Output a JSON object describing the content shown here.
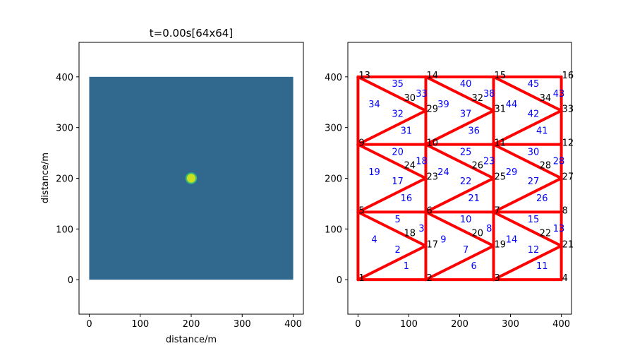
{
  "chart_data": [
    {
      "type": "heatmap",
      "title": "t=0.00s[64x64]",
      "xlabel": "distance/m",
      "ylabel": "distance/m",
      "xlim": [
        -20,
        420
      ],
      "ylim": [
        -68,
        468
      ],
      "xticks": [
        0,
        100,
        200,
        300,
        400
      ],
      "yticks": [
        0,
        100,
        200,
        300,
        400
      ],
      "domain": [
        0,
        400,
        0,
        400
      ],
      "grid": "64x64",
      "background_value_color": "#31688e",
      "source": {
        "x": 200,
        "y": 200,
        "radius": 10,
        "color": "#c8e020"
      }
    },
    {
      "type": "mesh",
      "title": "",
      "xlim": [
        -20,
        420
      ],
      "ylim": [
        -68,
        468
      ],
      "xticks": [
        0,
        100,
        200,
        300,
        400
      ],
      "yticks": [
        0,
        100,
        200,
        300,
        400
      ],
      "edge_color": "#ff0000",
      "node_label_color": "#000000",
      "element_label_color": "#0000ff",
      "nodes": [
        {
          "id": "1",
          "x": 0,
          "y": 0
        },
        {
          "id": "2",
          "x": 133.33,
          "y": 0
        },
        {
          "id": "3",
          "x": 266.67,
          "y": 0
        },
        {
          "id": "4",
          "x": 400,
          "y": 0
        },
        {
          "id": "5",
          "x": 0,
          "y": 133.33
        },
        {
          "id": "6",
          "x": 133.33,
          "y": 133.33
        },
        {
          "id": "7",
          "x": 266.67,
          "y": 133.33
        },
        {
          "id": "8",
          "x": 400,
          "y": 133.33
        },
        {
          "id": "9",
          "x": 0,
          "y": 266.67
        },
        {
          "id": "10",
          "x": 133.33,
          "y": 266.67
        },
        {
          "id": "11",
          "x": 266.67,
          "y": 266.67
        },
        {
          "id": "12",
          "x": 400,
          "y": 266.67
        },
        {
          "id": "13",
          "x": 0,
          "y": 400
        },
        {
          "id": "14",
          "x": 133.33,
          "y": 400
        },
        {
          "id": "15",
          "x": 266.67,
          "y": 400
        },
        {
          "id": "16",
          "x": 400,
          "y": 400
        },
        {
          "id": "17",
          "x": 133.33,
          "y": 66.67
        },
        {
          "id": "18",
          "x": 88.89,
          "y": 88.89
        },
        {
          "id": "19",
          "x": 266.67,
          "y": 66.67
        },
        {
          "id": "20",
          "x": 222.22,
          "y": 88.89
        },
        {
          "id": "21",
          "x": 400,
          "y": 66.67
        },
        {
          "id": "22",
          "x": 355.56,
          "y": 88.89
        },
        {
          "id": "23",
          "x": 133.33,
          "y": 200
        },
        {
          "id": "24",
          "x": 88.89,
          "y": 222.22
        },
        {
          "id": "25",
          "x": 266.67,
          "y": 200
        },
        {
          "id": "26",
          "x": 222.22,
          "y": 222.22
        },
        {
          "id": "27",
          "x": 400,
          "y": 200
        },
        {
          "id": "28",
          "x": 355.56,
          "y": 222.22
        },
        {
          "id": "29",
          "x": 133.33,
          "y": 333.33
        },
        {
          "id": "30",
          "x": 88.89,
          "y": 355.56
        },
        {
          "id": "31",
          "x": 266.67,
          "y": 333.33
        },
        {
          "id": "32",
          "x": 222.22,
          "y": 355.56
        },
        {
          "id": "33",
          "x": 400,
          "y": 333.33
        },
        {
          "id": "34",
          "x": 355.56,
          "y": 355.56
        }
      ],
      "elements": [
        {
          "id": "1",
          "x": 95,
          "y": 28
        },
        {
          "id": "2",
          "x": 78,
          "y": 60
        },
        {
          "id": "3",
          "x": 125,
          "y": 102
        },
        {
          "id": "4",
          "x": 32,
          "y": 80
        },
        {
          "id": "5",
          "x": 78,
          "y": 120
        },
        {
          "id": "6",
          "x": 228,
          "y": 28
        },
        {
          "id": "7",
          "x": 212,
          "y": 60
        },
        {
          "id": "8",
          "x": 258,
          "y": 102
        },
        {
          "id": "9",
          "x": 168,
          "y": 80
        },
        {
          "id": "10",
          "x": 212,
          "y": 120
        },
        {
          "id": "11",
          "x": 362,
          "y": 28
        },
        {
          "id": "12",
          "x": 345,
          "y": 60
        },
        {
          "id": "13",
          "x": 395,
          "y": 102
        },
        {
          "id": "14",
          "x": 302,
          "y": 80
        },
        {
          "id": "15",
          "x": 345,
          "y": 120
        },
        {
          "id": "16",
          "x": 95,
          "y": 162
        },
        {
          "id": "17",
          "x": 78,
          "y": 195
        },
        {
          "id": "18",
          "x": 125,
          "y": 235
        },
        {
          "id": "19",
          "x": 32,
          "y": 213
        },
        {
          "id": "20",
          "x": 78,
          "y": 253
        },
        {
          "id": "21",
          "x": 228,
          "y": 162
        },
        {
          "id": "22",
          "x": 212,
          "y": 195
        },
        {
          "id": "23",
          "x": 258,
          "y": 235
        },
        {
          "id": "24",
          "x": 168,
          "y": 213
        },
        {
          "id": "25",
          "x": 212,
          "y": 253
        },
        {
          "id": "26",
          "x": 362,
          "y": 162
        },
        {
          "id": "27",
          "x": 345,
          "y": 195
        },
        {
          "id": "28",
          "x": 395,
          "y": 235
        },
        {
          "id": "29",
          "x": 302,
          "y": 213
        },
        {
          "id": "30",
          "x": 345,
          "y": 253
        },
        {
          "id": "31",
          "x": 95,
          "y": 295
        },
        {
          "id": "32",
          "x": 78,
          "y": 328
        },
        {
          "id": "33",
          "x": 125,
          "y": 368
        },
        {
          "id": "34",
          "x": 32,
          "y": 347
        },
        {
          "id": "35",
          "x": 78,
          "y": 387
        },
        {
          "id": "36",
          "x": 228,
          "y": 295
        },
        {
          "id": "37",
          "x": 212,
          "y": 328
        },
        {
          "id": "38",
          "x": 258,
          "y": 368
        },
        {
          "id": "39",
          "x": 168,
          "y": 347
        },
        {
          "id": "40",
          "x": 212,
          "y": 387
        },
        {
          "id": "41",
          "x": 362,
          "y": 295
        },
        {
          "id": "42",
          "x": 345,
          "y": 328
        },
        {
          "id": "43",
          "x": 395,
          "y": 368
        },
        {
          "id": "44",
          "x": 302,
          "y": 347
        },
        {
          "id": "45",
          "x": 345,
          "y": 387
        }
      ],
      "edges": [
        [
          "1",
          "2"
        ],
        [
          "2",
          "3"
        ],
        [
          "3",
          "4"
        ],
        [
          "5",
          "6"
        ],
        [
          "6",
          "7"
        ],
        [
          "7",
          "8"
        ],
        [
          "9",
          "10"
        ],
        [
          "10",
          "11"
        ],
        [
          "11",
          "12"
        ],
        [
          "13",
          "14"
        ],
        [
          "14",
          "15"
        ],
        [
          "15",
          "16"
        ],
        [
          "1",
          "5"
        ],
        [
          "5",
          "9"
        ],
        [
          "9",
          "13"
        ],
        [
          "2",
          "6"
        ],
        [
          "6",
          "10"
        ],
        [
          "10",
          "14"
        ],
        [
          "3",
          "7"
        ],
        [
          "7",
          "11"
        ],
        [
          "11",
          "15"
        ],
        [
          "4",
          "8"
        ],
        [
          "8",
          "12"
        ],
        [
          "12",
          "16"
        ],
        [
          "1",
          "17"
        ],
        [
          "5",
          "17"
        ],
        [
          "2",
          "19"
        ],
        [
          "6",
          "19"
        ],
        [
          "3",
          "21"
        ],
        [
          "7",
          "21"
        ],
        [
          "5",
          "23"
        ],
        [
          "9",
          "23"
        ],
        [
          "6",
          "25"
        ],
        [
          "10",
          "25"
        ],
        [
          "7",
          "27"
        ],
        [
          "11",
          "27"
        ],
        [
          "9",
          "29"
        ],
        [
          "13",
          "29"
        ],
        [
          "10",
          "31"
        ],
        [
          "14",
          "31"
        ],
        [
          "11",
          "33"
        ],
        [
          "15",
          "33"
        ]
      ]
    }
  ]
}
